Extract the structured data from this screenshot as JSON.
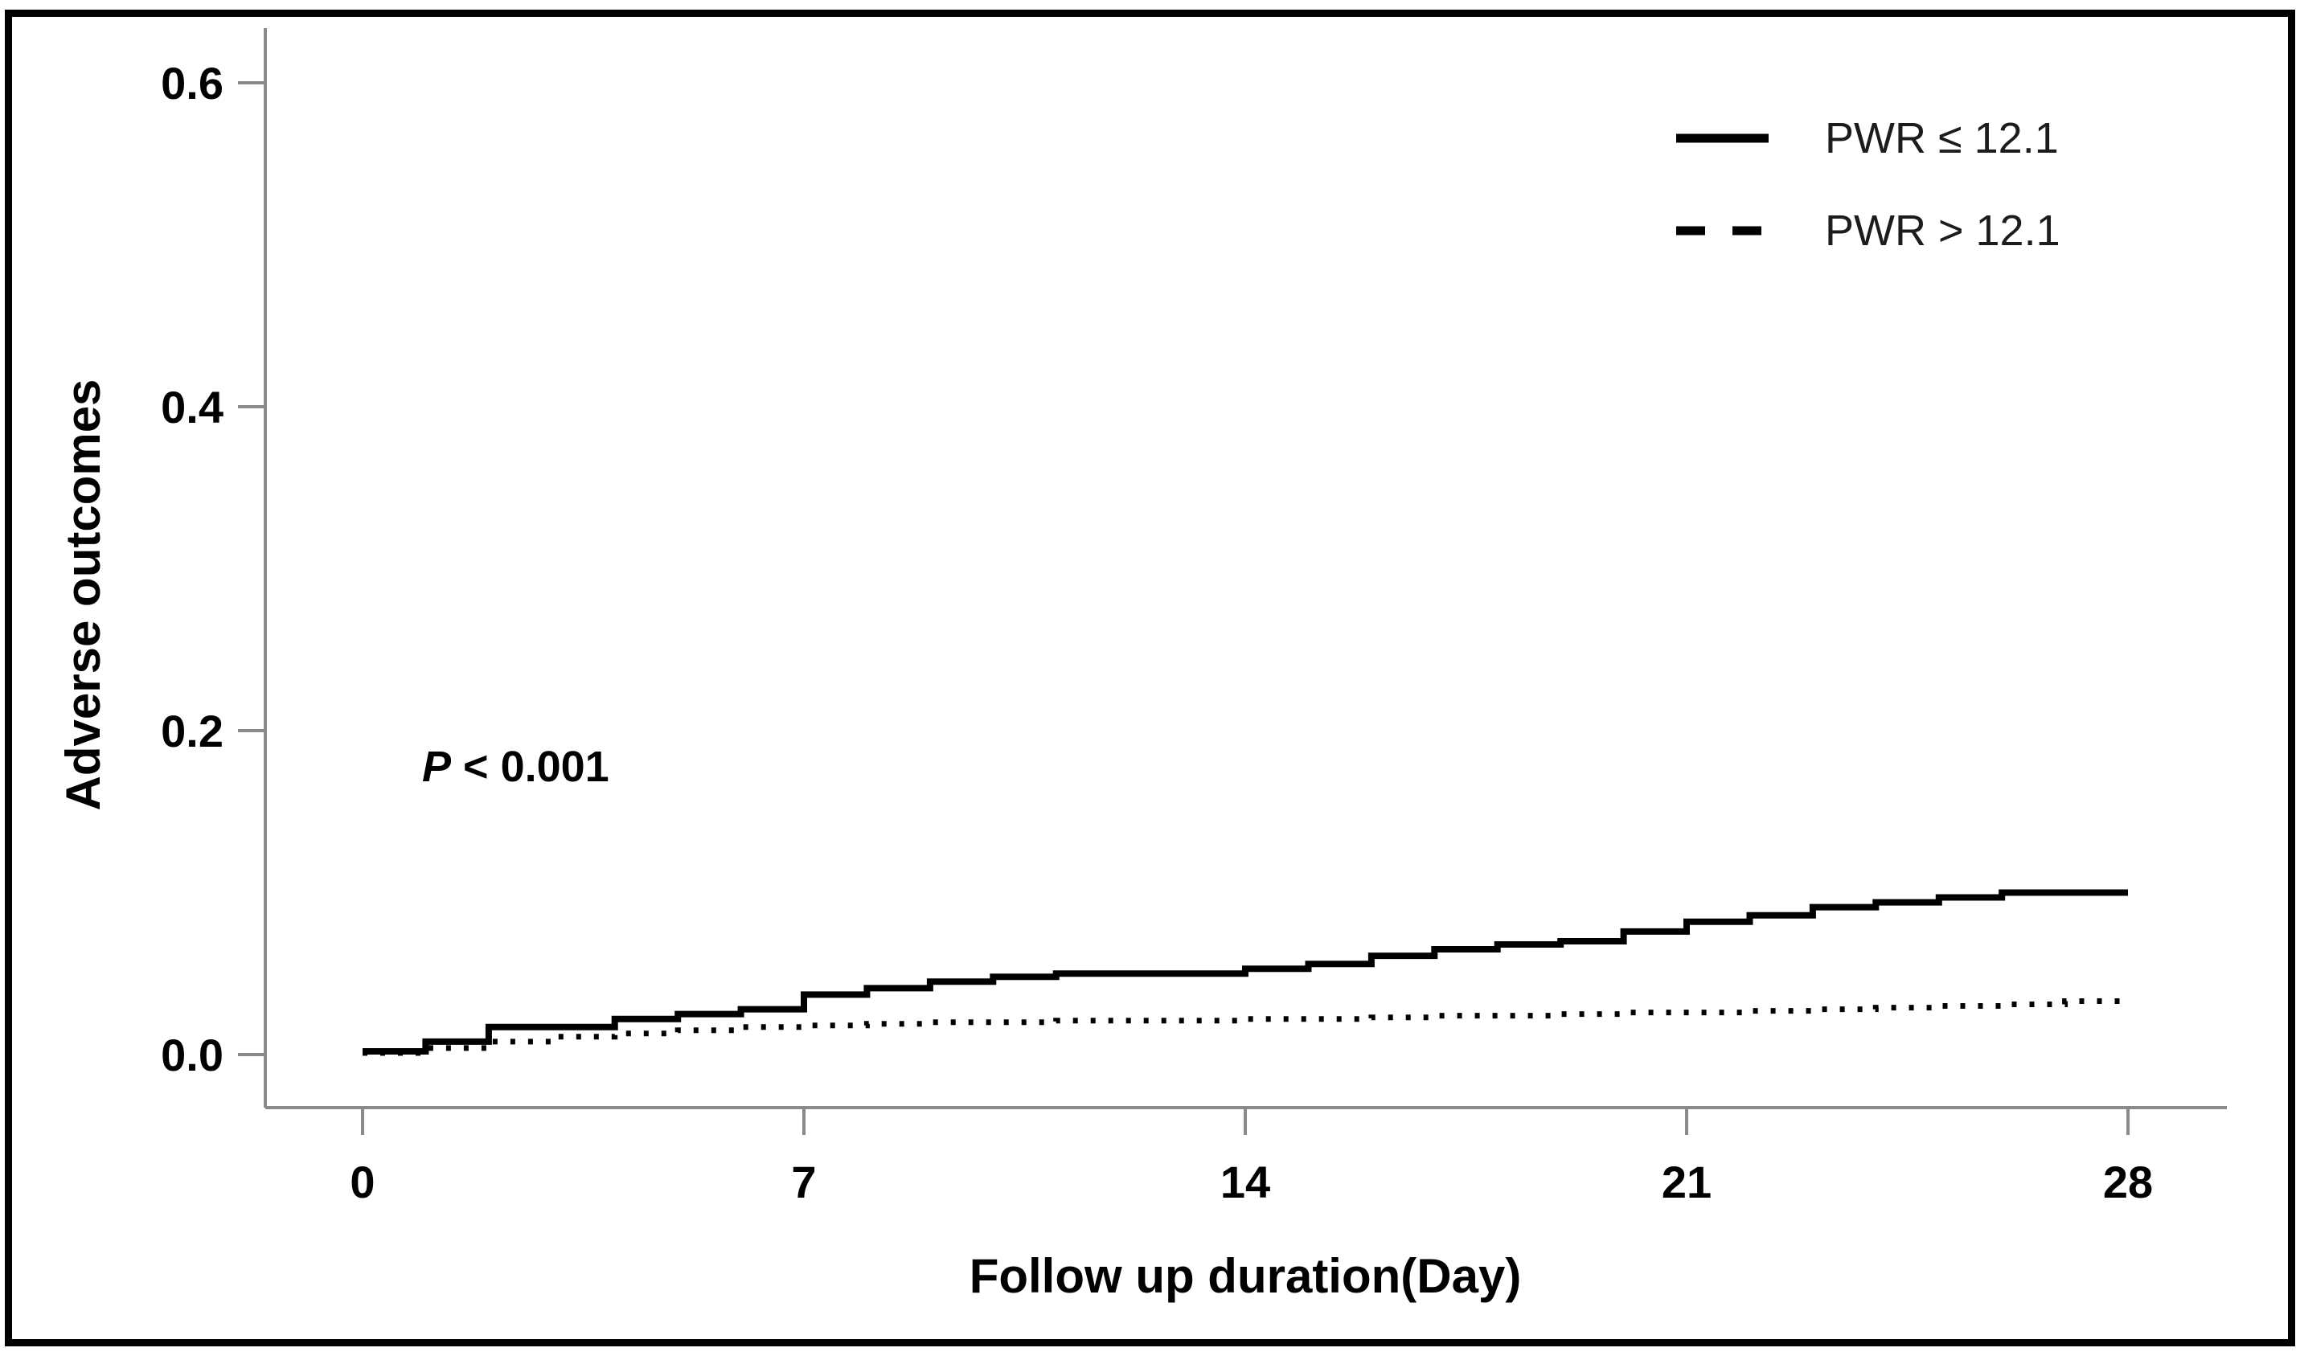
{
  "figure": {
    "background": "#ffffff",
    "border_color": "#000000"
  },
  "annotation": {
    "text": "P < 0.001",
    "italic_part": "P",
    "rest": " < 0.001"
  },
  "legend": {
    "position": "top-right",
    "items": [
      {
        "label": "PWR ≤ 12.1",
        "line_style": "solid",
        "color": "#000000"
      },
      {
        "label": "PWR > 12.1",
        "line_style": "dashed",
        "color": "#000000"
      }
    ]
  },
  "colors": {
    "axis": "#8a8a8a",
    "curve": "#000000",
    "text": "#000000",
    "legend_text": "#1c1c1c",
    "border": "#000000"
  },
  "chart_data": {
    "type": "line",
    "subtype": "kaplan-meier-step",
    "title": "",
    "xlabel": "Follow up duration(Day)",
    "ylabel": "Adverse outcomes",
    "xlim": [
      0,
      28
    ],
    "ylim": [
      0,
      0.63
    ],
    "x_ticks": [
      0,
      7,
      14,
      21,
      28
    ],
    "x_tick_labels": [
      "0",
      "7",
      "14",
      "21",
      "28"
    ],
    "y_ticks": [
      0.0,
      0.2,
      0.4,
      0.6
    ],
    "y_tick_labels": [
      "0.0",
      "0.2",
      "0.4",
      "0.6"
    ],
    "grid": false,
    "legend_position": "top-right",
    "annotation": "P < 0.001",
    "series": [
      {
        "name": "PWR ≤ 12.1",
        "style": "solid",
        "color": "#000000",
        "x_unit": "day",
        "steps": [
          [
            0,
            0.002
          ],
          [
            1,
            0.008
          ],
          [
            2,
            0.017
          ],
          [
            4,
            0.022
          ],
          [
            5,
            0.025
          ],
          [
            6,
            0.028
          ],
          [
            7,
            0.037
          ],
          [
            8,
            0.041
          ],
          [
            9,
            0.045
          ],
          [
            10,
            0.048
          ],
          [
            11,
            0.05
          ],
          [
            14,
            0.053
          ],
          [
            15,
            0.056
          ],
          [
            16,
            0.061
          ],
          [
            17,
            0.065
          ],
          [
            18,
            0.068
          ],
          [
            19,
            0.07
          ],
          [
            20,
            0.076
          ],
          [
            21,
            0.082
          ],
          [
            22,
            0.086
          ],
          [
            23,
            0.091
          ],
          [
            24,
            0.094
          ],
          [
            25,
            0.097
          ],
          [
            26,
            0.1
          ]
        ],
        "final_value_at_day_28": 0.1
      },
      {
        "name": "PWR > 12.1",
        "style": "dashed",
        "color": "#000000",
        "x_unit": "day",
        "steps": [
          [
            0,
            0.001
          ],
          [
            1,
            0.004
          ],
          [
            2,
            0.008
          ],
          [
            3,
            0.011
          ],
          [
            4,
            0.013
          ],
          [
            5,
            0.015
          ],
          [
            6,
            0.017
          ],
          [
            7,
            0.018
          ],
          [
            8,
            0.019
          ],
          [
            9,
            0.02
          ],
          [
            11,
            0.021
          ],
          [
            14,
            0.022
          ],
          [
            16,
            0.023
          ],
          [
            17,
            0.024
          ],
          [
            19,
            0.025
          ],
          [
            20,
            0.026
          ],
          [
            22,
            0.027
          ],
          [
            23,
            0.028
          ],
          [
            24,
            0.029
          ],
          [
            25,
            0.03
          ],
          [
            26,
            0.031
          ],
          [
            27,
            0.033
          ]
        ],
        "final_value_at_day_28": 0.033
      }
    ]
  }
}
